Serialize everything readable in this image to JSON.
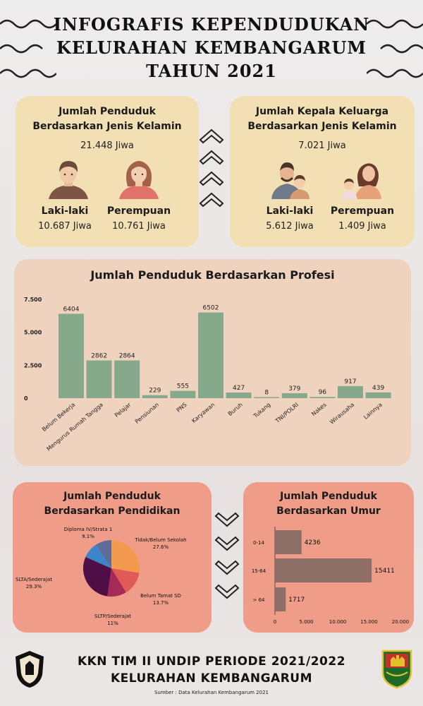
{
  "title": {
    "line1": "INFOGRAFIS KEPENDUDUKAN",
    "line2": "KELURAHAN KEMBANGARUM",
    "line3": "TAHUN 2021"
  },
  "gender": {
    "title1": "Jumlah Penduduk",
    "title2": "Berdasarkan Jenis Kelamin",
    "total": "21.448 Jiwa",
    "male_label": "Laki-laki",
    "male_value": "10.687 Jiwa",
    "female_label": "Perempuan",
    "female_value": "10.761 Jiwa"
  },
  "kk": {
    "title1": "Jumlah Kepala Keluarga",
    "title2": "Berdasarkan Jenis Kelamin",
    "total": "7.021 Jiwa",
    "male_label": "Laki-laki",
    "male_value": "5.612 Jiwa",
    "female_label": "Perempuan",
    "female_value": "1.409 Jiwa"
  },
  "education": {
    "title1": "Jumlah Penduduk",
    "title2": "Berdasarkan Pendidikan"
  },
  "age": {
    "title1": "Jumlah Penduduk",
    "title2": "Berdasarkan Umur"
  },
  "chart_data": [
    {
      "type": "bar",
      "title": "Jumlah Penduduk Berdasarkan Profesi",
      "categories": [
        "Belum Bekerja",
        "Mengurus Rumah Tangga",
        "Pelajar",
        "Pensiunan",
        "PNS",
        "Karyawan",
        "Buruh",
        "Tukang",
        "TNI/POLRI",
        "Nakes",
        "Wirausaha",
        "Lainnya"
      ],
      "values": [
        6404,
        2862,
        2864,
        229,
        555,
        6502,
        427,
        8,
        379,
        96,
        917,
        439
      ],
      "yticks": [
        "7.500",
        "5.000",
        "2.500",
        "0"
      ],
      "ylim": [
        0,
        7500
      ]
    },
    {
      "type": "pie",
      "title": "Jumlah Penduduk Berdasarkan Pendidikan",
      "slices": [
        {
          "label": "Tidak/Belum Sekolah",
          "pct": "27.6%",
          "value": 27.6,
          "color": "#f39a4e"
        },
        {
          "label": "Belum Tamat SD",
          "pct": "13.7%",
          "value": 13.7,
          "color": "#e05a56"
        },
        {
          "label": "SLTP/Sederajat",
          "pct": "11%",
          "value": 11.0,
          "color": "#a52a57"
        },
        {
          "label": "SLTA/Sederajat",
          "pct": "29.3%",
          "value": 29.3,
          "color": "#4d0f45"
        },
        {
          "label": "Diploma IV/Strata 1",
          "pct": "9.1%",
          "value": 9.1,
          "color": "#3a86c8"
        },
        {
          "label": "",
          "pct": "",
          "value": 9.3,
          "color": "#5f6c9a"
        }
      ]
    },
    {
      "type": "bar",
      "orientation": "horizontal",
      "title": "Jumlah Penduduk Berdasarkan Umur",
      "categories": [
        "0-14",
        "15-64",
        "> 64"
      ],
      "values": [
        4236,
        15411,
        1717
      ],
      "xticks": [
        "0",
        "5.000",
        "10.000",
        "15.000",
        "20.000"
      ],
      "xlim": [
        0,
        20000
      ]
    }
  ],
  "footer": {
    "line1": "KKN TIM II UNDIP PERIODE 2021/2022",
    "line2": "KELURAHAN KEMBANGARUM",
    "source": "Sumber : Data Kelurahan Kembangarum 2021"
  },
  "colors": {
    "bar": "#86a98c",
    "top_card": "#f3dfb4",
    "mid_card": "#f0d3bf",
    "low_card": "#ef9d88",
    "age_bar": "#8e6f67"
  }
}
